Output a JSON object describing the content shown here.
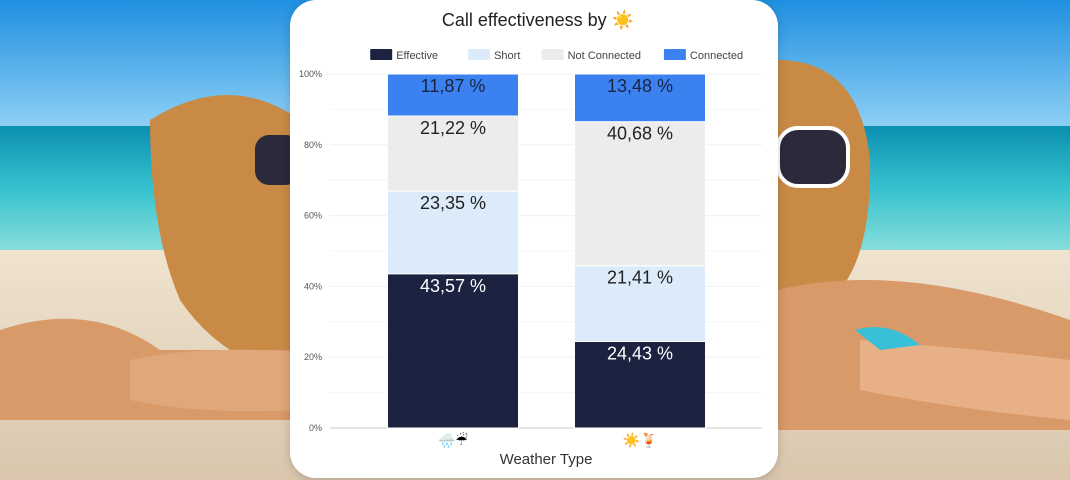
{
  "page": {
    "background": "beach photo"
  },
  "chart_data": {
    "type": "bar",
    "stacked": true,
    "title": "Call effectiveness by ☀️",
    "xlabel": "Weather Type",
    "ylabel": "",
    "ylim": [
      0,
      100
    ],
    "y_ticks": [
      0,
      20,
      40,
      60,
      80,
      100
    ],
    "y_tick_suffix": "%",
    "categories": [
      "🌧️☔",
      "☀️🍹"
    ],
    "legend_position": "top-center",
    "grid": true,
    "series": [
      {
        "name": "Effective",
        "color": "#1b2341",
        "label_color": "#ffffff",
        "values": [
          43.57,
          24.43
        ],
        "labels": [
          "43,57 %",
          "24,43 %"
        ]
      },
      {
        "name": "Short",
        "color": "#dcebfa",
        "label_color": "#222222",
        "values": [
          23.35,
          21.41
        ],
        "labels": [
          "23,35 %",
          "21,41 %"
        ]
      },
      {
        "name": "Not Connected",
        "color": "#ececec",
        "label_color": "#222222",
        "values": [
          21.22,
          40.68
        ],
        "labels": [
          "21,22 %",
          "40,68 %"
        ]
      },
      {
        "name": "Connected",
        "color": "#3b82f0",
        "label_color": "#1b2341",
        "values": [
          11.87,
          13.48
        ],
        "labels": [
          "11,87 %",
          "13,48 %"
        ]
      }
    ]
  }
}
